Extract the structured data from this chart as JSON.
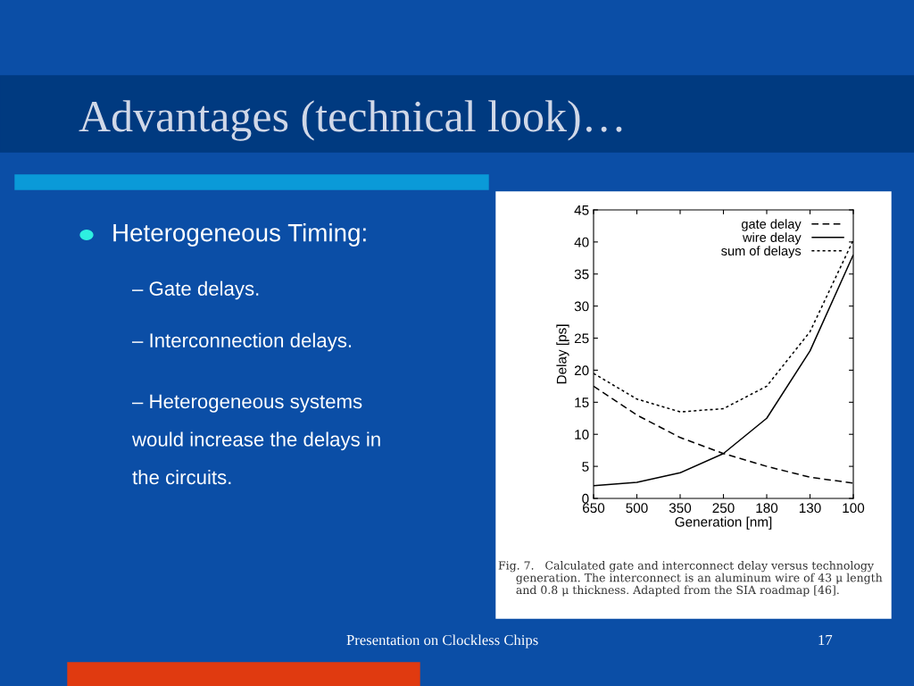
{
  "chart_data": {
    "type": "line",
    "title": "Advantages (technical look)…",
    "xlabel": "Generation [nm]",
    "ylabel": "Delay [ps]",
    "categories": [
      "650",
      "500",
      "350",
      "250",
      "180",
      "130",
      "100"
    ],
    "series": [
      {
        "name": "gate delay",
        "color": "#000000",
        "line_style": "dashed",
        "values": [
          17.5,
          13,
          9.5,
          7,
          5,
          3.3,
          2.4
        ]
      },
      {
        "name": "wire delay",
        "color": "#000000",
        "line_style": "solid",
        "values": [
          2,
          2.5,
          4,
          7,
          12.5,
          23,
          38
        ]
      },
      {
        "name": "sum of delays",
        "color": "#000000",
        "line_style": "dotted",
        "values": [
          19.5,
          15.5,
          13.5,
          14,
          17.5,
          26,
          40.3
        ]
      }
    ],
    "ylim": [
      0,
      45
    ],
    "yticks": [
      0,
      5,
      10,
      15,
      20,
      25,
      30,
      35,
      40,
      45
    ],
    "grid": false,
    "legend": "top right",
    "annotations": [
      "Heterogeneous Timing:",
      "– Gate delays.",
      "– Interconnection delays.",
      "– Heterogeneous systems\nwould increase the delays in\nthe circuits.",
      "Fig. 7.   Calculated gate and interconnect delay versus technology\n     generation. The interconnect is an aluminum wire of 43 μ length\n     and 0.8 μ thickness. Adapted from the SIA roadmap [46].",
      "Presentation on Clockless Chips",
      "17"
    ]
  }
}
